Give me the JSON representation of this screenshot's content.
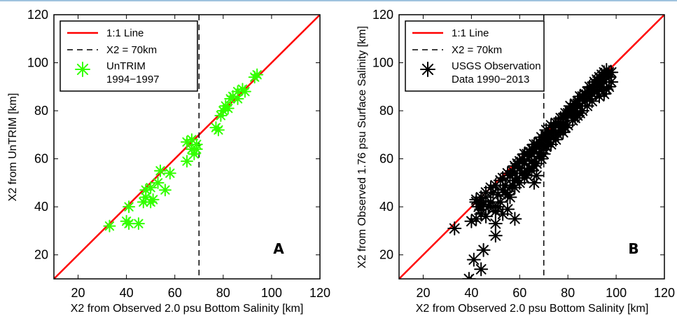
{
  "colors": {
    "one_to_one_line": "#ff0000",
    "untrim_marker": "#33ff00",
    "usgs_marker": "#000000"
  },
  "chart_data": [
    {
      "type": "scatter",
      "panel_label": "A",
      "xlabel": "X2 from Observed 2.0 psu Bottom Salinity [km]",
      "ylabel": "X2 from UnTRIM [km]",
      "xlim": [
        10,
        120
      ],
      "ylim": [
        10,
        120
      ],
      "xticks": [
        20,
        40,
        60,
        80,
        100,
        120
      ],
      "yticks": [
        20,
        40,
        60,
        80,
        100,
        120
      ],
      "legend_position": "top-left",
      "reference_lines": [
        {
          "name": "1:1 Line",
          "style": "solid",
          "color": "#ff0000",
          "kind": "identity"
        },
        {
          "name": "X2 = 70km",
          "style": "dashed",
          "color": "#000000",
          "kind": "vertical",
          "x": 70
        }
      ],
      "series": [
        {
          "name": "UnTRIM 1994−1997",
          "marker": "asterisk",
          "color": "#33ff00",
          "points": [
            [
              33,
              32
            ],
            [
              40,
              34
            ],
            [
              41,
              33
            ],
            [
              41,
              40
            ],
            [
              45,
              33
            ],
            [
              47,
              42
            ],
            [
              48,
              47
            ],
            [
              48,
              44
            ],
            [
              50,
              48
            ],
            [
              50,
              42
            ],
            [
              51,
              43
            ],
            [
              53,
              50
            ],
            [
              54,
              55
            ],
            [
              56,
              47
            ],
            [
              58,
              54
            ],
            [
              65,
              59
            ],
            [
              65,
              67
            ],
            [
              67,
              64
            ],
            [
              67,
              68
            ],
            [
              68,
              62
            ],
            [
              69,
              64
            ],
            [
              69,
              66
            ],
            [
              77,
              73
            ],
            [
              78,
              72
            ],
            [
              79,
              78
            ],
            [
              80,
              80
            ],
            [
              81,
              82
            ],
            [
              82,
              81
            ],
            [
              83,
              85
            ],
            [
              84,
              86
            ],
            [
              86,
              85
            ],
            [
              86,
              88
            ],
            [
              88,
              89
            ],
            [
              89,
              88
            ],
            [
              93,
              94
            ],
            [
              94,
              95
            ]
          ]
        }
      ]
    },
    {
      "type": "scatter",
      "panel_label": "B",
      "xlabel": "X2 from Observed 2.0 psu Bottom Salinity [km]",
      "ylabel": "X2 from Observed 1.76 psu Surface Salinity [km]",
      "xlim": [
        10,
        120
      ],
      "ylim": [
        10,
        120
      ],
      "xticks": [
        20,
        40,
        60,
        80,
        100,
        120
      ],
      "yticks": [
        20,
        40,
        60,
        80,
        100,
        120
      ],
      "legend_position": "top-left",
      "reference_lines": [
        {
          "name": "1:1 Line",
          "style": "solid",
          "color": "#ff0000",
          "kind": "identity"
        },
        {
          "name": "X2 = 70km",
          "style": "dashed",
          "color": "#000000",
          "kind": "vertical",
          "x": 70
        }
      ],
      "series": [
        {
          "name": "USGS Observation Data 1990−2013",
          "marker": "asterisk",
          "color": "#000000",
          "points": [
            [
              33,
              31
            ],
            [
              39,
              10
            ],
            [
              41,
              18
            ],
            [
              40,
              34
            ],
            [
              42,
              35
            ],
            [
              44,
              14
            ],
            [
              45,
              22
            ],
            [
              46,
              36
            ],
            [
              50,
              28
            ],
            [
              50,
              33
            ],
            [
              53,
              37
            ],
            [
              55,
              39
            ],
            [
              58,
              35
            ],
            [
              66,
              50
            ],
            [
              67,
              53
            ],
            [
              42,
              43
            ],
            [
              44,
              39
            ],
            [
              46,
              44
            ],
            [
              48,
              42
            ],
            [
              49,
              46
            ],
            [
              50,
              38
            ],
            [
              51,
              45
            ],
            [
              53,
              47
            ],
            [
              54,
              49
            ],
            [
              56,
              44
            ],
            [
              58,
              51
            ],
            [
              60,
              56
            ],
            [
              62,
              58
            ],
            [
              63,
              55
            ],
            [
              64,
              61
            ],
            [
              65,
              59
            ],
            [
              66,
              63
            ],
            [
              67,
              65
            ],
            [
              68,
              62
            ],
            [
              69,
              66
            ],
            [
              70,
              68
            ],
            [
              70,
              64
            ],
            [
              71,
              70
            ],
            [
              72,
              68
            ],
            [
              73,
              70
            ],
            [
              74,
              72
            ],
            [
              75,
              71
            ],
            [
              76,
              74
            ],
            [
              77,
              75
            ],
            [
              78,
              74
            ],
            [
              79,
              77
            ],
            [
              80,
              78
            ],
            [
              81,
              80
            ],
            [
              82,
              79
            ],
            [
              83,
              81
            ],
            [
              84,
              83
            ],
            [
              85,
              82
            ],
            [
              86,
              85
            ],
            [
              87,
              84
            ],
            [
              88,
              86
            ],
            [
              89,
              88
            ],
            [
              90,
              87
            ],
            [
              91,
              89
            ],
            [
              92,
              91
            ],
            [
              93,
              90
            ],
            [
              94,
              93
            ],
            [
              95,
              92
            ],
            [
              96,
              95
            ],
            [
              97,
              94
            ],
            [
              98,
              96
            ],
            [
              98,
              92
            ],
            [
              97,
              90
            ],
            [
              96,
              89
            ],
            [
              95,
              87
            ],
            [
              94,
              90
            ],
            [
              93,
              86
            ],
            [
              92,
              88
            ],
            [
              90,
              84
            ],
            [
              89,
              85
            ],
            [
              88,
              82
            ],
            [
              86,
              80
            ],
            [
              85,
              79
            ],
            [
              84,
              78
            ],
            [
              83,
              77
            ],
            [
              82,
              76
            ],
            [
              80,
              74
            ],
            [
              79,
              73
            ],
            [
              78,
              71
            ],
            [
              77,
              72
            ],
            [
              76,
              70
            ],
            [
              75,
              68
            ],
            [
              74,
              69
            ],
            [
              73,
              66
            ],
            [
              72,
              67
            ],
            [
              71,
              65
            ],
            [
              70,
              62
            ],
            [
              69,
              60
            ],
            [
              68,
              61
            ],
            [
              67,
              58
            ],
            [
              66,
              57
            ],
            [
              65,
              55
            ],
            [
              64,
              56
            ],
            [
              63,
              53
            ],
            [
              62,
              52
            ],
            [
              61,
              54
            ],
            [
              60,
              50
            ],
            [
              59,
              52
            ],
            [
              58,
              48
            ],
            [
              57,
              49
            ],
            [
              56,
              48
            ],
            [
              55,
              45
            ],
            [
              54,
              46
            ],
            [
              52,
              42
            ],
            [
              51,
              40
            ],
            [
              49,
              40
            ],
            [
              47,
              40
            ],
            [
              45,
              41
            ],
            [
              44,
              37
            ],
            [
              43,
              40
            ],
            [
              57,
              55
            ],
            [
              59,
              58
            ],
            [
              61,
              60
            ],
            [
              63,
              62
            ],
            [
              65,
              64
            ],
            [
              67,
              66
            ],
            [
              69,
              69
            ],
            [
              72,
              71
            ],
            [
              74,
              73
            ],
            [
              76,
              75
            ],
            [
              78,
              77
            ],
            [
              80,
              79
            ],
            [
              82,
              81
            ],
            [
              84,
              84
            ],
            [
              86,
              86
            ],
            [
              88,
              88
            ],
            [
              90,
              90
            ],
            [
              92,
              93
            ],
            [
              94,
              95
            ],
            [
              96,
              97
            ],
            [
              97,
              96
            ],
            [
              95,
              96
            ],
            [
              91,
              92
            ],
            [
              87,
              87
            ],
            [
              83,
              83
            ],
            [
              79,
              79
            ],
            [
              75,
              75
            ],
            [
              71,
              72
            ],
            [
              66,
              66
            ],
            [
              62,
              62
            ],
            [
              58,
              57
            ],
            [
              55,
              54
            ],
            [
              52,
              51
            ],
            [
              50,
              49
            ],
            [
              48,
              48
            ],
            [
              46,
              46
            ],
            [
              44,
              44
            ],
            [
              42,
              42
            ],
            [
              53,
              52
            ],
            [
              56,
              53
            ],
            [
              60,
              59
            ],
            [
              64,
              63
            ],
            [
              68,
              67
            ],
            [
              73,
              74
            ],
            [
              77,
              77
            ],
            [
              81,
              82
            ],
            [
              85,
              86
            ],
            [
              89,
              90
            ],
            [
              93,
              94
            ]
          ]
        }
      ]
    }
  ]
}
